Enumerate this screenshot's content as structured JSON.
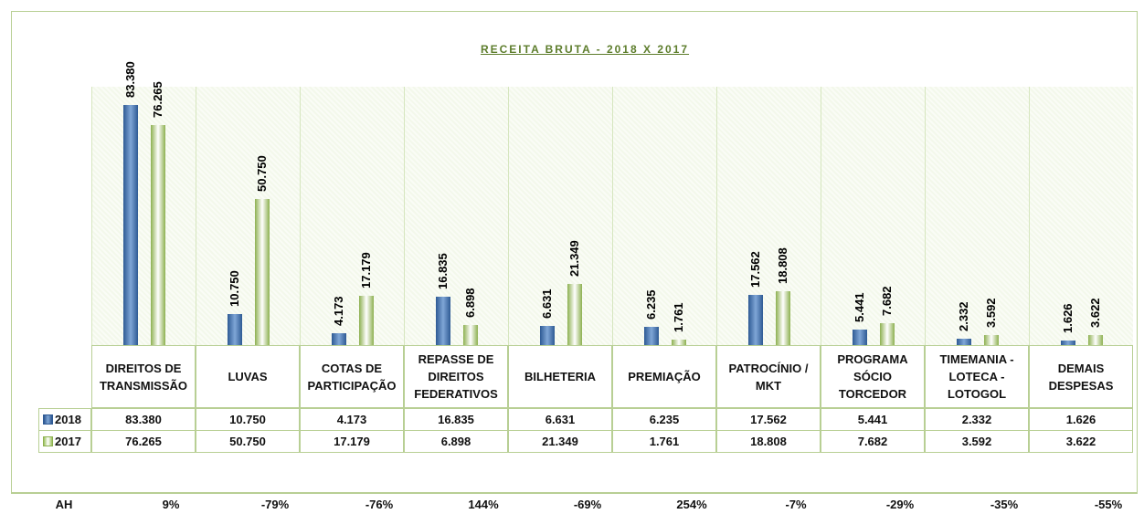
{
  "chart_data": {
    "type": "bar",
    "title": "RECEITA BRUTA - 2018 X 2017",
    "categories": [
      "DIREITOS DE TRANSMISSÃO",
      "LUVAS",
      "COTAS DE PARTICIPAÇÃO",
      "REPASSE DE DIREITOS FEDERATIVOS",
      "BILHETERIA",
      "PREMIAÇÃO",
      "PATROCÍNIO / MKT",
      "PROGRAMA SÓCIO TORCEDOR",
      "TIMEMANIA - LOTECA - LOTOGOL",
      "DEMAIS DESPESAS"
    ],
    "series": [
      {
        "name": "2018",
        "color": "#2e5a94",
        "values": [
          83380,
          10750,
          4173,
          16835,
          6631,
          6235,
          17562,
          5441,
          2332,
          1626
        ],
        "value_labels": [
          "83.380",
          "10.750",
          "4.173",
          "16.835",
          "6.631",
          "6.235",
          "17.562",
          "5.441",
          "2.332",
          "1.626"
        ]
      },
      {
        "name": "2017",
        "color": "#8db050",
        "values": [
          76265,
          50750,
          17179,
          6898,
          21349,
          1761,
          18808,
          7682,
          3592,
          3622
        ],
        "value_labels": [
          "76.265",
          "50.750",
          "17.179",
          "6.898",
          "21.349",
          "1.761",
          "18.808",
          "7.682",
          "3.592",
          "3.622"
        ]
      }
    ],
    "ah": {
      "label": "AH",
      "values": [
        9,
        -79,
        -76,
        144,
        -69,
        254,
        -7,
        -29,
        -35,
        -55
      ],
      "value_labels": [
        "9%",
        "-79%",
        "-76%",
        "144%",
        "-69%",
        "254%",
        "-7%",
        "-29%",
        "-35%",
        "-55%"
      ]
    }
  }
}
